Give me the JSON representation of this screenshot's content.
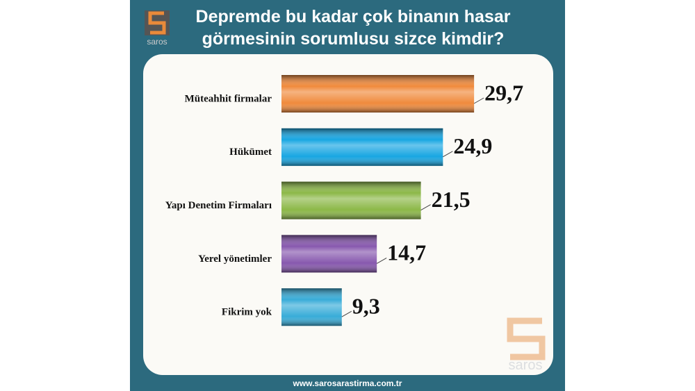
{
  "chart_data": {
    "type": "bar",
    "orientation": "horizontal",
    "title": "Depremde bu kadar çok binanın hasar görmesinin sorumlusu sizce kimdir?",
    "categories": [
      "Müteahhit firmalar",
      "Hükümet",
      "Yapı Denetim Firmaları",
      "Yerel yönetimler",
      "Fikrim yok"
    ],
    "values": [
      29.7,
      24.9,
      21.5,
      14.7,
      9.3
    ],
    "value_labels": [
      "29,7",
      "24,9",
      "21,5",
      "14,7",
      "9,3"
    ],
    "colors": [
      "#f08a3c",
      "#18a6e2",
      "#8cb848",
      "#8758ae",
      "#38acd8"
    ],
    "brand": "saros",
    "footer": "www.sarosarastirma.com.tr"
  }
}
